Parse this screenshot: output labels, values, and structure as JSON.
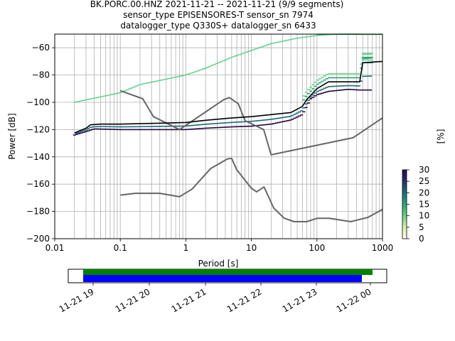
{
  "title": {
    "line1": "BK.PORC.00.HNZ   2021-11-21 -- 2021-11-21  (9/9 segments)",
    "line2": "sensor_type EPISENSORES-T sensor_sn 7974",
    "line3": "datalogger_type Q330S+ datalogger_sn 6433"
  },
  "colorbar": {
    "label": "[%]",
    "ticks": [
      "0",
      "5",
      "10",
      "15",
      "20",
      "25",
      "30"
    ],
    "range": [
      0,
      30
    ],
    "colors": [
      "#fffff0",
      "#d8f0a8",
      "#6cd08a",
      "#2aa57a",
      "#1e6e7a",
      "#2a2f6a",
      "#2a0a45"
    ]
  },
  "chart_data": [
    {
      "type": "line",
      "xlabel": "Period [s]",
      "ylabel": "Power [dB]",
      "xscale": "log",
      "xlim": [
        0.01,
        1000
      ],
      "ylim": [
        -200,
        -50
      ],
      "grid": true,
      "x_ticks": [
        "0.01",
        "0.1",
        "1",
        "10",
        "100",
        "1000"
      ],
      "y_ticks": [
        "-200",
        "-180",
        "-160",
        "-140",
        "-120",
        "-100",
        "-80",
        "-60"
      ],
      "series": [
        {
          "role": "noise-model-high",
          "color": "#666666",
          "x": [
            0.1,
            0.22,
            0.32,
            0.8,
            3.8,
            4.6,
            6.3,
            8,
            15.4,
            20,
            354.8,
            1000
          ],
          "y": [
            -91.5,
            -97.4,
            -110.5,
            -120,
            -98,
            -96.5,
            -101,
            -113.5,
            -120,
            -138.5,
            -126,
            -111.5
          ]
        },
        {
          "role": "noise-model-low",
          "color": "#666666",
          "x": [
            0.1,
            0.17,
            0.4,
            0.8,
            1.24,
            2.4,
            4.3,
            5,
            6,
            10,
            12,
            15.6,
            21.9,
            31.6,
            45,
            70,
            101,
            154,
            328,
            600,
            1000
          ],
          "y": [
            -168,
            -166.7,
            -166.7,
            -169.2,
            -163.7,
            -148.5,
            -141.5,
            -141.1,
            -149.5,
            -163,
            -165.7,
            -162.1,
            -177.5,
            -185,
            -187.5,
            -187.5,
            -185,
            -185,
            -187.5,
            -184.4,
            -178.5
          ]
        },
        {
          "role": "mode",
          "color": "#000000",
          "x": [
            0.02,
            0.025,
            0.03,
            0.035,
            0.05,
            0.1,
            0.2,
            0.5,
            1,
            2,
            5,
            10,
            20,
            40,
            60,
            70,
            80,
            100,
            150,
            300,
            450,
            500,
            1000
          ],
          "y": [
            -122.5,
            -120.5,
            -119,
            -116.5,
            -116,
            -116,
            -115.7,
            -115.2,
            -114.8,
            -113.2,
            -111.5,
            -110.5,
            -109,
            -107.5,
            -103,
            -98,
            -95,
            -90,
            -85,
            -85,
            -85,
            -71,
            -70
          ]
        }
      ],
      "psd_histogram": {
        "band_low_x": [
          0.02,
          0.03,
          0.04,
          0.1,
          0.5,
          1,
          2,
          5,
          10,
          20,
          40,
          60,
          70,
          80,
          100,
          150,
          300,
          450
        ],
        "band_low_y": [
          -124,
          -121.5,
          -119.5,
          -120,
          -120,
          -120,
          -119,
          -118,
          -117.5,
          -116,
          -113,
          -109,
          -103,
          -97.5,
          -94.5,
          -92,
          -90.5,
          -91
        ],
        "top_green_x": [
          0.02,
          0.1,
          0.2,
          1,
          2,
          5,
          10,
          20,
          50,
          100,
          200,
          500
        ],
        "top_green_y": [
          -100,
          -93,
          -87,
          -80,
          -75,
          -67,
          -62,
          -57,
          -53,
          -51,
          -50,
          -50
        ],
        "bar_levels_db": [
          -64,
          -67,
          -69,
          -71
        ]
      }
    },
    {
      "type": "timeline",
      "x_ticks": [
        "11-21 19",
        "11-21 20",
        "11-21 21",
        "11-21 22",
        "11-21 23",
        "11-22 00"
      ],
      "series": [
        {
          "name": "green",
          "color": "#008000"
        },
        {
          "name": "blue",
          "color": "#0000ff"
        }
      ]
    }
  ]
}
